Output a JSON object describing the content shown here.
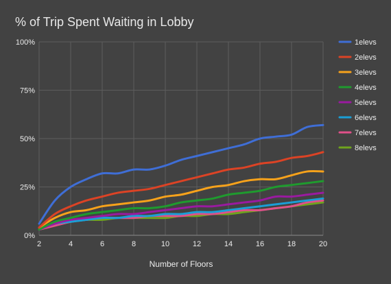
{
  "chart_data": {
    "type": "line",
    "title": "% of Trip Spent Waiting in Lobby",
    "xlabel": "Number of Floors",
    "ylabel": "",
    "xlim": [
      2,
      20
    ],
    "ylim": [
      0,
      100
    ],
    "xticks": [
      "2",
      "4",
      "6",
      "8",
      "10",
      "12",
      "14",
      "16",
      "18",
      "20"
    ],
    "yticks": [
      "0%",
      "25%",
      "50%",
      "75%",
      "100%"
    ],
    "grid": true,
    "legend_position": "right",
    "x": [
      2,
      3,
      4,
      5,
      6,
      7,
      8,
      9,
      10,
      11,
      12,
      13,
      14,
      15,
      16,
      17,
      18,
      19,
      20
    ],
    "series": [
      {
        "name": "1elevs",
        "color": "#3f6ed6",
        "values": [
          6,
          18,
          25,
          29,
          32,
          32,
          34,
          34,
          36,
          39,
          41,
          43,
          45,
          47,
          50,
          51,
          52,
          56,
          57
        ]
      },
      {
        "name": "2elevs",
        "color": "#dc4325",
        "values": [
          4,
          11,
          15,
          18,
          20,
          22,
          23,
          24,
          26,
          28,
          30,
          32,
          34,
          35,
          37,
          38,
          40,
          41,
          43
        ]
      },
      {
        "name": "3elevs",
        "color": "#f7a21b",
        "values": [
          4,
          9,
          12,
          13,
          15,
          16,
          17,
          18,
          20,
          21,
          23,
          25,
          26,
          28,
          29,
          29,
          31,
          33,
          33
        ]
      },
      {
        "name": "4elevs",
        "color": "#1f9b2e",
        "values": [
          3,
          7,
          9,
          11,
          12,
          13,
          14,
          14,
          15,
          17,
          18,
          19,
          21,
          22,
          23,
          25,
          26,
          27,
          28
        ]
      },
      {
        "name": "5elevs",
        "color": "#9a1aa0",
        "values": [
          3,
          6,
          8,
          9,
          10,
          11,
          11,
          12,
          13,
          14,
          15,
          15,
          16,
          17,
          18,
          20,
          20,
          21,
          22
        ]
      },
      {
        "name": "6elevs",
        "color": "#1a9fd6",
        "values": [
          3,
          6,
          7,
          8,
          9,
          9,
          10,
          10,
          11,
          11,
          12,
          12,
          13,
          14,
          15,
          16,
          17,
          18,
          19
        ]
      },
      {
        "name": "7elevs",
        "color": "#e0508a",
        "values": [
          3,
          5,
          7,
          8,
          9,
          9,
          9,
          10,
          10,
          10,
          11,
          11,
          12,
          13,
          13,
          14,
          15,
          17,
          18
        ]
      },
      {
        "name": "8elevs",
        "color": "#6fa41d",
        "values": [
          3,
          5,
          7,
          8,
          8,
          9,
          9,
          9,
          9,
          10,
          10,
          11,
          11,
          12,
          13,
          14,
          15,
          16,
          17
        ]
      }
    ]
  }
}
